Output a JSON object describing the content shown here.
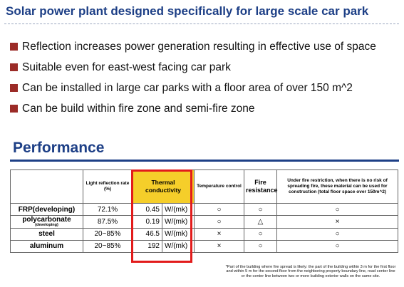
{
  "title": "Solar power plant designed specifically for large scale car park",
  "bullets": [
    "Reflection increases power generation resulting in effective use of space",
    "Suitable even for east-west facing car park",
    "Can be installed in large car parks with a floor area of over 150 m^2",
    "Can be build within fire zone and semi-fire zone"
  ],
  "performance_heading": "Performance",
  "table": {
    "headers": {
      "material": "",
      "reflection": "Light reflection rate (%)",
      "thermal": "Thermal conductivity",
      "temperature": "Temperature control",
      "fire": "Fire resistance",
      "restriction": "Under fire restriction, when there is no risk of spreading fire, these material can be used for construction (total floor space over 150m^2)"
    },
    "rows": [
      {
        "name": "FRP(developing)",
        "sub": "",
        "reflection": "72.1%",
        "thermal_value": "0.45",
        "thermal_unit": "W/(mk)",
        "temperature": "○",
        "fire": "○",
        "restriction": "○"
      },
      {
        "name": "polycarbonate",
        "sub": "(developing)",
        "reflection": "87.5%",
        "thermal_value": "0.19",
        "thermal_unit": "W/(mk)",
        "temperature": "○",
        "fire": "△",
        "restriction": "×"
      },
      {
        "name": "steel",
        "sub": "",
        "reflection": "20~85%",
        "thermal_value": "46.5",
        "thermal_unit": "W/(mk)",
        "temperature": "×",
        "fire": "○",
        "restriction": "○"
      },
      {
        "name": "aluminum",
        "sub": "",
        "reflection": "20~85%",
        "thermal_value": "192",
        "thermal_unit": "W/(mk)",
        "temperature": "×",
        "fire": "○",
        "restriction": "○"
      }
    ]
  },
  "footnote": "*Part of the building where fire spread is likely: the part of the building within 3 m for the first floor and within 5 m for the second floor from the neighboring property boundary line, road center line or the center line between two or more building exterior walls on the same site.",
  "colors": {
    "title": "#1d3f86",
    "bullet": "#9b2b27",
    "highlight": "#f5ce2a",
    "highlight_border": "#e21b1b"
  }
}
